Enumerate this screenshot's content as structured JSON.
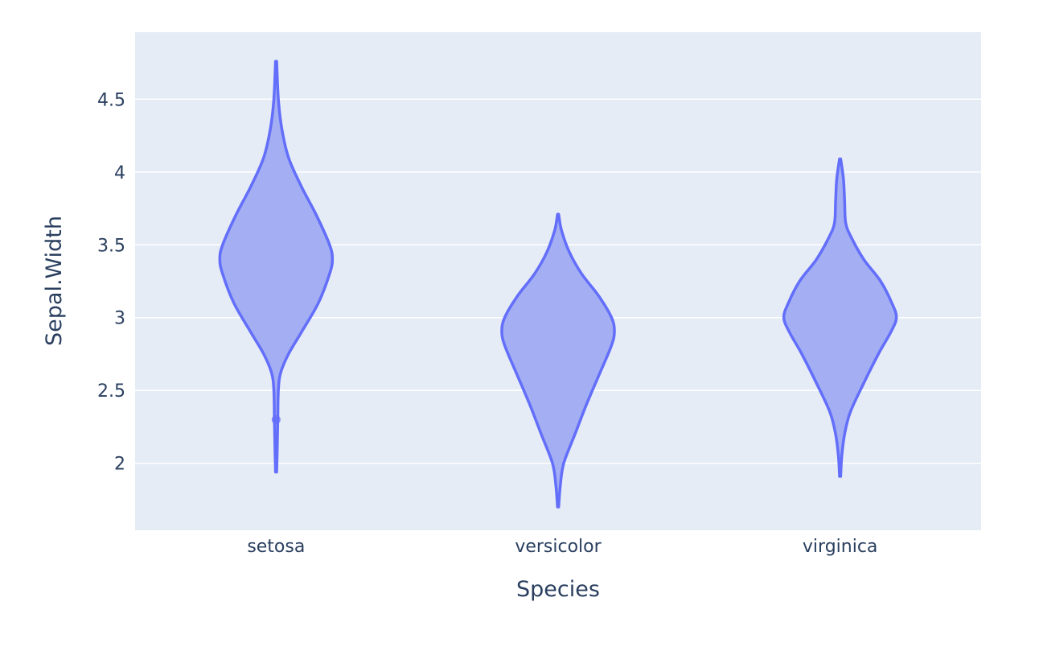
{
  "chart_data": {
    "type": "violin",
    "title": "",
    "xlabel": "Species",
    "ylabel": "Sepal.Width",
    "categories": [
      "setosa",
      "versicolor",
      "virginica"
    ],
    "yticks": [
      2,
      2.5,
      3,
      3.5,
      4,
      4.5
    ],
    "ylim": [
      1.54,
      4.96
    ],
    "grid": true,
    "legend": "none",
    "colors": {
      "fill": "#a3aef3",
      "line": "#636efa",
      "plot_bg": "#e5ecf6",
      "grid": "#ffffff",
      "text": "#2a3f5f"
    },
    "violins": [
      {
        "category": "setosa",
        "min": 1.94,
        "max": 4.76,
        "outliers": [
          2.3
        ],
        "profile": [
          [
            1.94,
            0.01
          ],
          [
            2.1,
            0.02
          ],
          [
            2.3,
            0.03
          ],
          [
            2.5,
            0.04
          ],
          [
            2.62,
            0.08
          ],
          [
            2.75,
            0.22
          ],
          [
            2.9,
            0.45
          ],
          [
            3.1,
            0.75
          ],
          [
            3.3,
            0.95
          ],
          [
            3.4,
            1.0
          ],
          [
            3.5,
            0.95
          ],
          [
            3.7,
            0.72
          ],
          [
            3.9,
            0.45
          ],
          [
            4.1,
            0.22
          ],
          [
            4.3,
            0.1
          ],
          [
            4.5,
            0.04
          ],
          [
            4.76,
            0.01
          ]
        ]
      },
      {
        "category": "versicolor",
        "min": 1.7,
        "max": 3.71,
        "outliers": [],
        "profile": [
          [
            1.7,
            0.01
          ],
          [
            1.85,
            0.04
          ],
          [
            2.0,
            0.1
          ],
          [
            2.2,
            0.3
          ],
          [
            2.4,
            0.5
          ],
          [
            2.6,
            0.72
          ],
          [
            2.8,
            0.94
          ],
          [
            2.9,
            1.0
          ],
          [
            3.0,
            0.95
          ],
          [
            3.15,
            0.72
          ],
          [
            3.3,
            0.42
          ],
          [
            3.45,
            0.2
          ],
          [
            3.6,
            0.06
          ],
          [
            3.71,
            0.01
          ]
        ]
      },
      {
        "category": "virginica",
        "min": 1.91,
        "max": 4.09,
        "outliers": [],
        "profile": [
          [
            1.91,
            0.01
          ],
          [
            2.05,
            0.03
          ],
          [
            2.2,
            0.08
          ],
          [
            2.35,
            0.18
          ],
          [
            2.55,
            0.42
          ],
          [
            2.75,
            0.68
          ],
          [
            2.9,
            0.9
          ],
          [
            3.0,
            1.0
          ],
          [
            3.1,
            0.92
          ],
          [
            3.25,
            0.72
          ],
          [
            3.4,
            0.42
          ],
          [
            3.55,
            0.2
          ],
          [
            3.65,
            0.1
          ],
          [
            3.8,
            0.08
          ],
          [
            3.95,
            0.06
          ],
          [
            4.09,
            0.01
          ]
        ]
      }
    ]
  }
}
